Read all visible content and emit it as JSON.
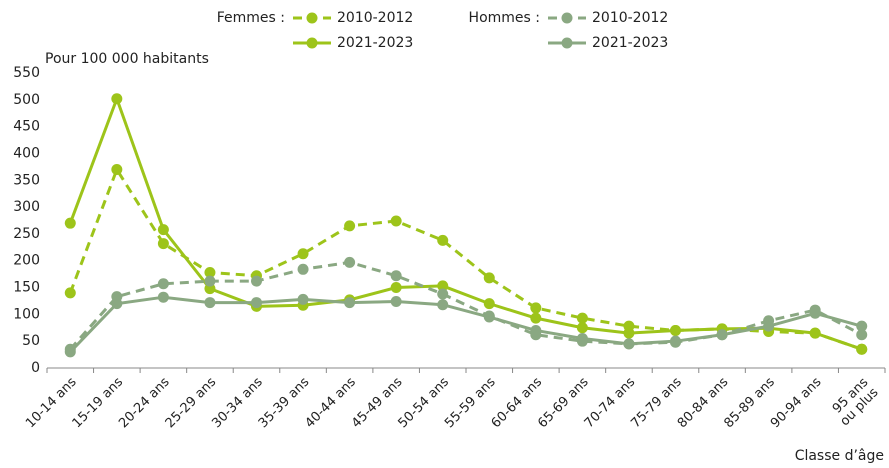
{
  "chart_data": {
    "type": "line",
    "y_label": "Pour 100 000 habitants",
    "x_label": "Classe d’âge",
    "legend_groups": [
      "Femmes :",
      "Hommes :"
    ],
    "categories": [
      "10-14 ans",
      "15-19 ans",
      "20-24 ans",
      "25-29 ans",
      "30-34 ans",
      "35-39 ans",
      "40-44 ans",
      "45-49 ans",
      "50-54 ans",
      "55-59 ans",
      "60-64 ans",
      "65-69 ans",
      "70-74 ans",
      "75-79 ans",
      "80-84 ans",
      "85-89 ans",
      "90-94 ans",
      "95 ans\nou plus"
    ],
    "series": [
      {
        "name": "2010-2012",
        "color": "#9dc41a",
        "dashed": true,
        "values": [
          140,
          370,
          232,
          178,
          172,
          213,
          265,
          274,
          238,
          168,
          112,
          93,
          78,
          70,
          73,
          68,
          65,
          35
        ]
      },
      {
        "name": "2021-2023",
        "color": "#9dc41a",
        "dashed": false,
        "values": [
          270,
          502,
          258,
          148,
          115,
          117,
          127,
          150,
          153,
          120,
          93,
          75,
          65,
          70,
          73,
          74,
          65,
          35
        ]
      },
      {
        "name": "2010-2012",
        "color": "#8aa882",
        "dashed": true,
        "values": [
          35,
          133,
          157,
          162,
          162,
          184,
          197,
          172,
          138,
          97,
          62,
          50,
          45,
          48,
          62,
          88,
          108,
          62
        ]
      },
      {
        "name": "2021-2023",
        "color": "#8aa882",
        "dashed": false,
        "values": [
          30,
          120,
          132,
          122,
          122,
          128,
          122,
          124,
          118,
          95,
          70,
          55,
          45,
          50,
          62,
          78,
          102,
          78
        ]
      }
    ],
    "ylim": [
      0,
      550
    ],
    "yticks": [
      0,
      50,
      100,
      150,
      200,
      250,
      300,
      350,
      400,
      450,
      500,
      550
    ]
  }
}
